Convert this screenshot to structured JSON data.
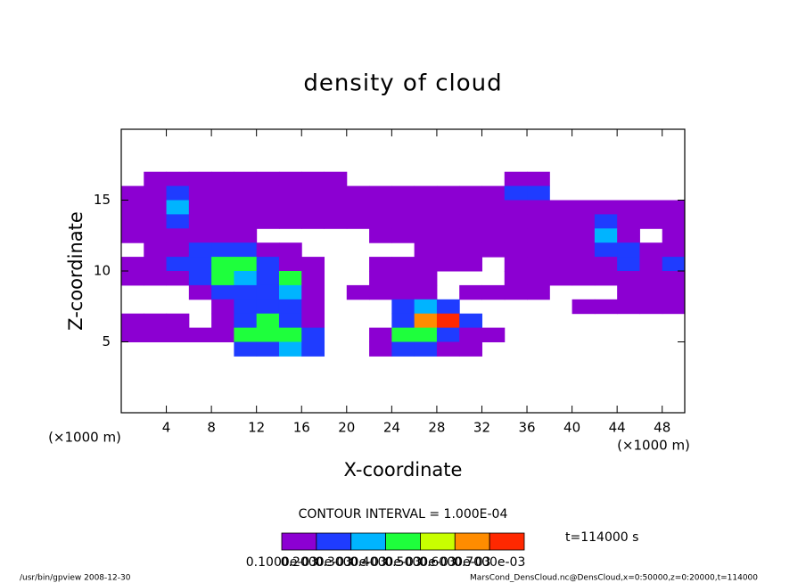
{
  "chart_data": {
    "type": "contour",
    "title": "density of cloud",
    "x_label": "X-coordinate",
    "y_label": "Z-coordinate",
    "x_unit_left": "(×1000 m)",
    "x_unit_right": "(×1000 m)",
    "contour_interval": "CONTOUR INTERVAL = 1.000E-04",
    "time_label": "t=114000 s",
    "footer_left": "/usr/bin/gpview  2008-12-30",
    "footer_right": "MarsCond_DensCloud.nc@DensCloud,x=0:50000,z=0:20000,t=114000",
    "xlim": [
      0,
      50
    ],
    "ylim": [
      0,
      20
    ],
    "xticks": [
      4,
      8,
      12,
      16,
      20,
      24,
      28,
      32,
      36,
      40,
      44,
      48
    ],
    "yticks": [
      5,
      10,
      15
    ],
    "x": [
      1,
      3,
      5,
      7,
      9,
      11,
      13,
      15,
      17,
      19,
      21,
      23,
      25,
      27,
      29,
      31,
      33,
      35,
      37,
      39,
      41,
      43,
      45,
      47,
      49
    ],
    "z": [
      16.5,
      15.5,
      14.5,
      13.5,
      12.5,
      11.5,
      10.5,
      9.5,
      8.5,
      7.5,
      6.5,
      5.5,
      4.5
    ],
    "values": [
      [
        null,
        0.0001,
        0.0001,
        0.0001,
        0.0001,
        0.0001,
        0.0001,
        0.0001,
        0.0001,
        0.0001,
        null,
        null,
        null,
        null,
        null,
        null,
        null,
        0.0001,
        0.0001,
        null,
        null,
        null,
        null,
        null,
        null
      ],
      [
        0.0001,
        0.0001,
        0.0002,
        0.0001,
        0.0001,
        0.0001,
        0.0001,
        0.0001,
        0.0001,
        0.0001,
        0.0001,
        0.0001,
        0.0001,
        0.0001,
        0.0001,
        0.0001,
        0.0001,
        0.0002,
        0.0002,
        null,
        null,
        null,
        null,
        null,
        null
      ],
      [
        0.0001,
        0.0001,
        0.0003,
        0.0001,
        0.0001,
        0.0001,
        0.0001,
        0.0001,
        0.0001,
        0.0001,
        0.0001,
        0.0001,
        0.0001,
        0.0001,
        0.0001,
        0.0001,
        0.0001,
        0.0001,
        0.0001,
        0.0001,
        0.0001,
        0.0001,
        0.0001,
        0.0001,
        0.0001
      ],
      [
        0.0001,
        0.0001,
        0.0002,
        0.0001,
        0.0001,
        0.0001,
        0.0001,
        0.0001,
        0.0001,
        0.0001,
        0.0001,
        0.0001,
        0.0001,
        0.0001,
        0.0001,
        0.0001,
        0.0001,
        0.0001,
        0.0001,
        0.0001,
        0.0001,
        0.0002,
        0.0001,
        0.0001,
        0.0001
      ],
      [
        0.0001,
        0.0001,
        0.0001,
        0.0001,
        0.0001,
        0.0001,
        null,
        null,
        null,
        null,
        null,
        0.0001,
        0.0001,
        0.0001,
        0.0001,
        0.0001,
        0.0001,
        0.0001,
        0.0001,
        0.0001,
        0.0001,
        0.0003,
        0.0001,
        null,
        0.0001
      ],
      [
        null,
        0.0001,
        0.0001,
        0.0002,
        0.0002,
        0.0002,
        0.0001,
        0.0001,
        null,
        null,
        null,
        null,
        null,
        0.0001,
        0.0001,
        0.0001,
        0.0001,
        0.0001,
        0.0001,
        0.0001,
        0.0001,
        0.0002,
        0.0002,
        0.0001,
        0.0001
      ],
      [
        0.0001,
        0.0001,
        0.0002,
        0.0002,
        0.0004,
        0.0004,
        0.0002,
        0.0001,
        0.0001,
        null,
        null,
        0.0001,
        0.0001,
        0.0001,
        0.0001,
        0.0001,
        null,
        0.0001,
        0.0001,
        0.0001,
        0.0001,
        0.0001,
        0.0002,
        0.0001,
        0.0002
      ],
      [
        0.0001,
        0.0001,
        0.0001,
        0.0002,
        0.0004,
        0.0003,
        0.0002,
        0.0004,
        0.0001,
        null,
        null,
        0.0001,
        0.0001,
        0.0001,
        null,
        null,
        null,
        0.0001,
        0.0001,
        0.0001,
        0.0001,
        0.0001,
        0.0001,
        0.0001,
        0.0001
      ],
      [
        null,
        null,
        null,
        0.0001,
        0.0002,
        0.0002,
        0.0002,
        0.0003,
        0.0001,
        null,
        0.0001,
        0.0001,
        0.0001,
        0.0001,
        null,
        0.0001,
        0.0001,
        0.0001,
        0.0001,
        null,
        null,
        null,
        0.0001,
        0.0001,
        0.0001
      ],
      [
        null,
        null,
        null,
        null,
        0.0001,
        0.0002,
        0.0002,
        0.0002,
        0.0001,
        null,
        null,
        null,
        0.0002,
        0.0003,
        0.0002,
        null,
        null,
        null,
        null,
        null,
        0.0001,
        0.0001,
        0.0001,
        0.0001,
        0.0001
      ],
      [
        0.0001,
        0.0001,
        0.0001,
        null,
        0.0001,
        0.0002,
        0.0004,
        0.0002,
        0.0001,
        null,
        null,
        null,
        0.0002,
        0.0006,
        0.0007,
        0.0002,
        null,
        null,
        null,
        null,
        null,
        null,
        null,
        null,
        null
      ],
      [
        0.0001,
        0.0001,
        0.0001,
        0.0001,
        0.0001,
        0.0004,
        0.0004,
        0.0004,
        0.0002,
        null,
        null,
        0.0001,
        0.0004,
        0.0004,
        0.0002,
        0.0001,
        0.0001,
        null,
        null,
        null,
        null,
        null,
        null,
        null,
        null
      ],
      [
        null,
        null,
        null,
        null,
        null,
        0.0002,
        0.0002,
        0.0003,
        0.0002,
        null,
        null,
        0.0001,
        0.0002,
        0.0002,
        0.0001,
        0.0001,
        null,
        null,
        null,
        null,
        null,
        null,
        null,
        null,
        null
      ]
    ],
    "levels": [
      {
        "value": 0.0001,
        "label": "0.1000e-03"
      },
      {
        "value": 0.0002,
        "label": "0.2000e-03"
      },
      {
        "value": 0.0003,
        "label": "0.3000e-03"
      },
      {
        "value": 0.0004,
        "label": "0.4000e-03"
      },
      {
        "value": 0.0005,
        "label": "0.5000e-03"
      },
      {
        "value": 0.0006,
        "label": "0.6000e-03"
      },
      {
        "value": 0.0007,
        "label": "0.7000e-03"
      }
    ],
    "colors": [
      "#8c00d2",
      "#1f3cff",
      "#00b4ff",
      "#1eff3c",
      "#c8ff00",
      "#ff8c00",
      "#ff2800"
    ]
  }
}
